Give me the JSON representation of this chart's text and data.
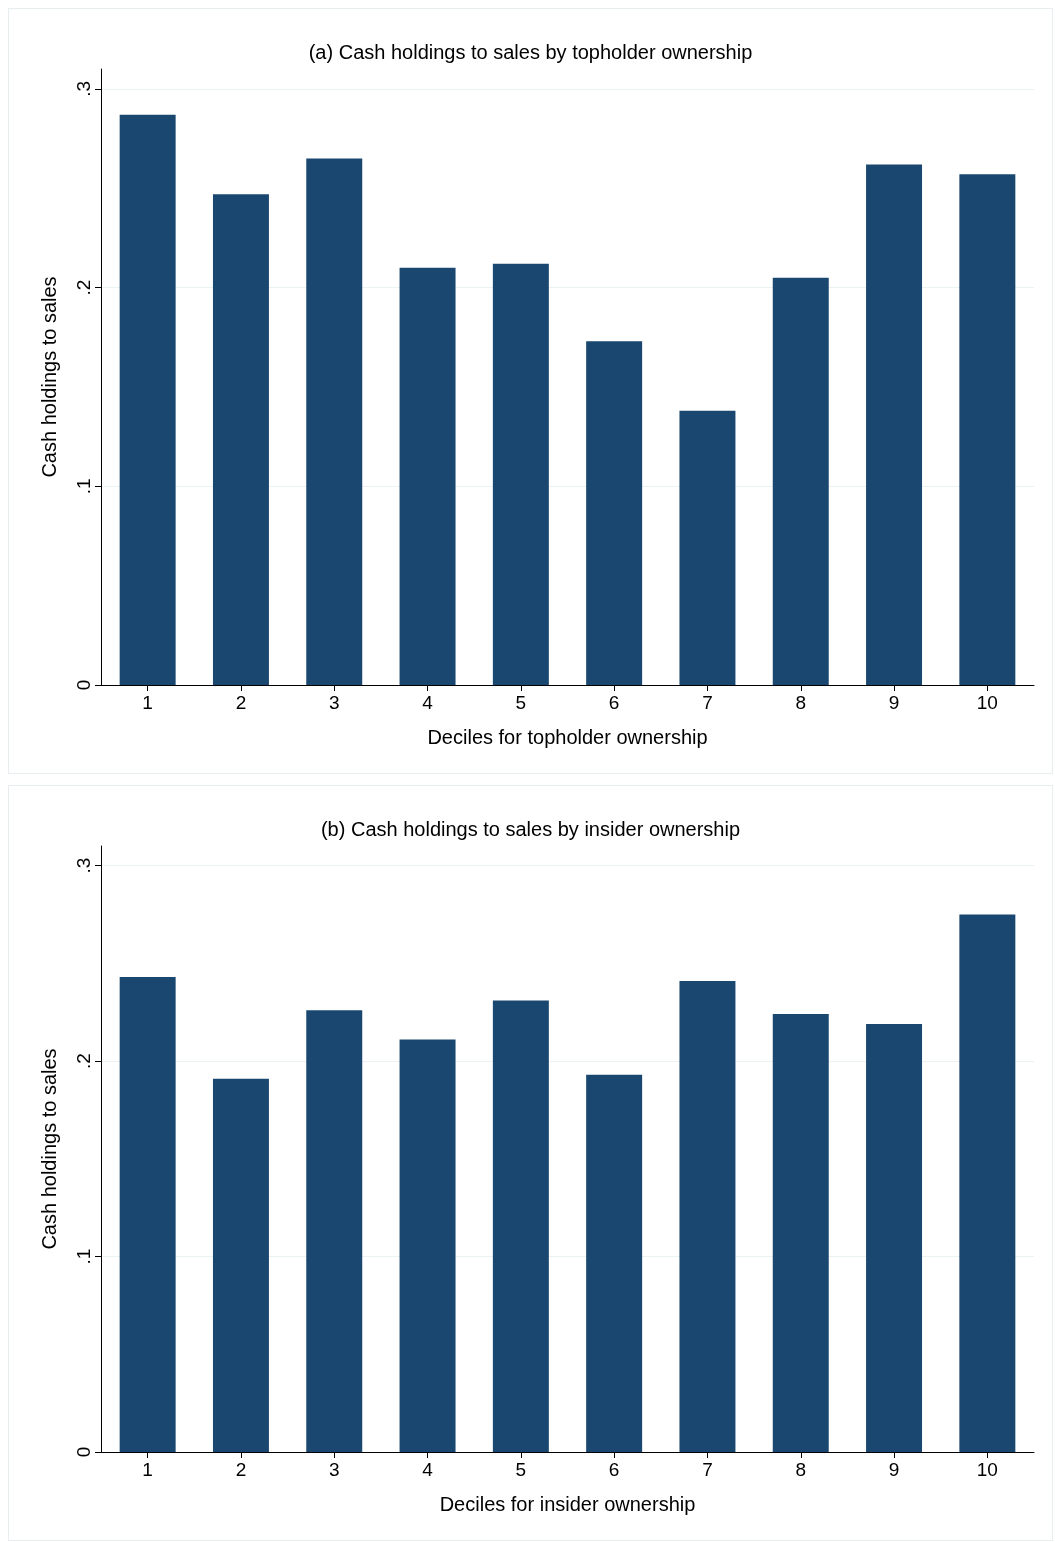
{
  "chart_data": [
    {
      "type": "bar",
      "title": "(a) Cash holdings to sales by topholder ownership",
      "xlabel": "Deciles for topholder ownership",
      "ylabel": "Cash holdings to sales",
      "categories": [
        "1",
        "2",
        "3",
        "4",
        "5",
        "6",
        "7",
        "8",
        "9",
        "10"
      ],
      "series": [
        {
          "color": "#1a476f",
          "values": [
            0.287,
            0.247,
            0.265,
            0.21,
            0.212,
            0.173,
            0.138,
            0.205,
            0.262,
            0.257
          ]
        }
      ],
      "ylim": [
        0,
        0.31
      ],
      "yticks": [
        0,
        {
          "value": 0.1,
          "label": ".1"
        },
        {
          "value": 0.2,
          "label": ".2"
        },
        {
          "value": 0.3,
          "label": ".3"
        }
      ],
      "grid": "y"
    },
    {
      "type": "bar",
      "title": "(b) Cash holdings to sales by insider ownership",
      "xlabel": "Deciles for insider ownership",
      "ylabel": "Cash holdings to sales",
      "categories": [
        "1",
        "2",
        "3",
        "4",
        "5",
        "6",
        "7",
        "8",
        "9",
        "10"
      ],
      "series": [
        {
          "color": "#1a476f",
          "values": [
            0.243,
            0.191,
            0.226,
            0.211,
            0.231,
            0.193,
            0.241,
            0.224,
            0.219,
            0.275
          ]
        }
      ],
      "ylim": [
        0,
        0.31
      ],
      "yticks": [
        0,
        {
          "value": 0.1,
          "label": ".1"
        },
        {
          "value": 0.2,
          "label": ".2"
        },
        {
          "value": 0.3,
          "label": ".3"
        }
      ],
      "grid": "y"
    }
  ]
}
